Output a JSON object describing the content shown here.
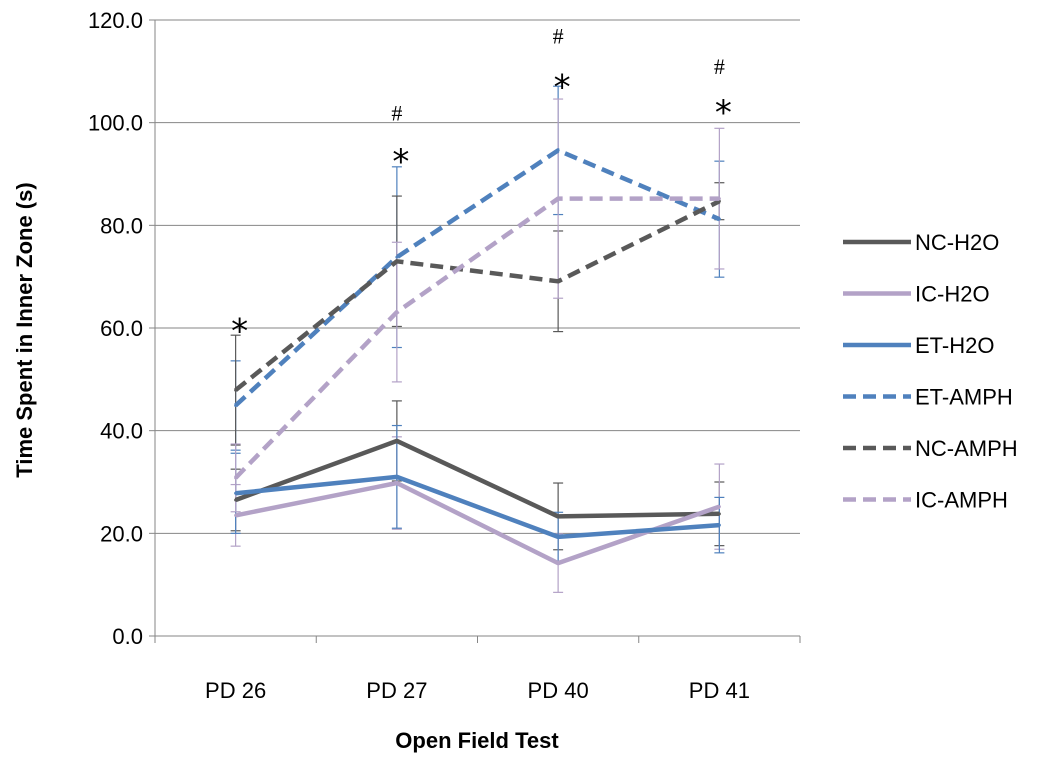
{
  "chart_data": {
    "type": "line",
    "title": "",
    "xlabel": "Open Field Test",
    "ylabel": "Time Spent in Inner Zone (s)",
    "categories": [
      "PD 26",
      "PD 27",
      "PD 40",
      "PD 41"
    ],
    "ylim": [
      0,
      120
    ],
    "yticks": [
      "0.0",
      "20.0",
      "40.0",
      "60.0",
      "80.0",
      "100.0",
      "120.0"
    ],
    "grid": "horizontal",
    "legend_position": "right",
    "series": [
      {
        "name": "NC-H2O",
        "color": "#595959",
        "dashed": false,
        "values": [
          26.5,
          38.0,
          23.3,
          23.8
        ],
        "errors": [
          6.0,
          7.8,
          6.5,
          6.2
        ]
      },
      {
        "name": "IC-H2O",
        "color": "#b3a2c7",
        "dashed": false,
        "values": [
          23.5,
          29.8,
          14.2,
          25.2
        ],
        "errors": [
          6.0,
          9.0,
          5.7,
          8.3
        ]
      },
      {
        "name": "ET-H2O",
        "color": "#4f81bd",
        "dashed": false,
        "values": [
          27.8,
          31.0,
          19.3,
          21.6
        ],
        "errors": [
          7.8,
          10.0,
          4.8,
          5.4
        ]
      },
      {
        "name": "ET-AMPH",
        "color": "#4f81bd",
        "dashed": true,
        "values": [
          44.9,
          73.8,
          94.6,
          81.2
        ],
        "errors": [
          8.7,
          17.6,
          12.5,
          11.3
        ]
      },
      {
        "name": "NC-AMPH",
        "color": "#595959",
        "dashed": true,
        "values": [
          47.9,
          73.0,
          69.1,
          84.7
        ],
        "errors": [
          10.7,
          12.7,
          9.8,
          3.6
        ]
      },
      {
        "name": "IC-AMPH",
        "color": "#b3a2c7",
        "dashed": true,
        "values": [
          30.8,
          63.1,
          85.2,
          85.2
        ],
        "errors": [
          6.6,
          13.6,
          19.4,
          13.7
        ]
      }
    ],
    "annotations": [
      {
        "text": "*",
        "category": "PD 26",
        "y": 61.5
      },
      {
        "text": "*",
        "category": "PD 27",
        "y": 94.5
      },
      {
        "text": "#",
        "category": "PD 27",
        "y": 102.0
      },
      {
        "text": "*",
        "category": "PD 40",
        "y": 109.0
      },
      {
        "text": "#",
        "category": "PD 40",
        "y": 117.0
      },
      {
        "text": "*",
        "category": "PD 41",
        "y": 104.0
      },
      {
        "text": "#",
        "category": "PD 41",
        "y": 111.0
      }
    ]
  }
}
